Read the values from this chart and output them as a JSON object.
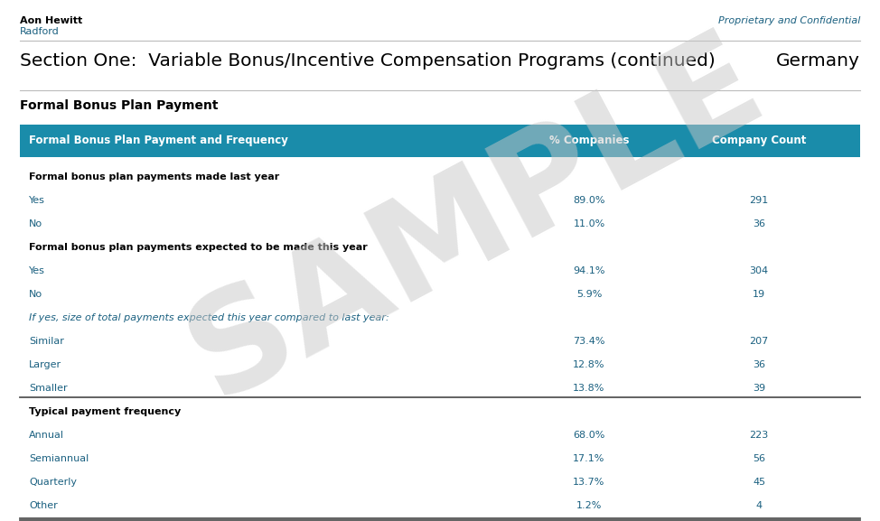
{
  "header_company": "Aon Hewitt",
  "header_sub": "Radford",
  "header_right": "Proprietary and Confidential",
  "section_title": "Section One:  Variable Bonus/Incentive Compensation Programs (continued)",
  "section_country": "Germany",
  "table_title": "Formal Bonus Plan Payment",
  "col1_header": "Formal Bonus Plan Payment and Frequency",
  "col2_header": "% Companies",
  "col3_header": "Company Count",
  "header_bg": "#1a8caa",
  "header_fg": "#ffffff",
  "rows": [
    {
      "label": "Formal bonus plan payments made last year",
      "pct": "",
      "count": "",
      "bold": true,
      "italic": false,
      "separator_before": false,
      "separator_after": false,
      "color": "#000000"
    },
    {
      "label": "Yes",
      "pct": "89.0%",
      "count": "291",
      "bold": false,
      "italic": false,
      "separator_before": false,
      "separator_after": false,
      "color": "#1a6080"
    },
    {
      "label": "No",
      "pct": "11.0%",
      "count": "36",
      "bold": false,
      "italic": false,
      "separator_before": false,
      "separator_after": false,
      "color": "#1a6080"
    },
    {
      "label": "Formal bonus plan payments expected to be made this year",
      "pct": "",
      "count": "",
      "bold": true,
      "italic": false,
      "separator_before": false,
      "separator_after": false,
      "color": "#000000"
    },
    {
      "label": "Yes",
      "pct": "94.1%",
      "count": "304",
      "bold": false,
      "italic": false,
      "separator_before": false,
      "separator_after": false,
      "color": "#1a6080"
    },
    {
      "label": "No",
      "pct": "5.9%",
      "count": "19",
      "bold": false,
      "italic": false,
      "separator_before": false,
      "separator_after": false,
      "color": "#1a6080"
    },
    {
      "label": "If yes, size of total payments expected this year compared to last year:",
      "pct": "",
      "count": "",
      "bold": false,
      "italic": true,
      "separator_before": false,
      "separator_after": false,
      "color": "#1a6080"
    },
    {
      "label": "Similar",
      "pct": "73.4%",
      "count": "207",
      "bold": false,
      "italic": false,
      "separator_before": false,
      "separator_after": false,
      "color": "#1a6080"
    },
    {
      "label": "Larger",
      "pct": "12.8%",
      "count": "36",
      "bold": false,
      "italic": false,
      "separator_before": false,
      "separator_after": false,
      "color": "#1a6080"
    },
    {
      "label": "Smaller",
      "pct": "13.8%",
      "count": "39",
      "bold": false,
      "italic": false,
      "separator_before": false,
      "separator_after": false,
      "color": "#1a6080"
    },
    {
      "label": "Typical payment frequency",
      "pct": "",
      "count": "",
      "bold": true,
      "italic": false,
      "separator_before": true,
      "separator_after": false,
      "color": "#000000"
    },
    {
      "label": "Annual",
      "pct": "68.0%",
      "count": "223",
      "bold": false,
      "italic": false,
      "separator_before": false,
      "separator_after": false,
      "color": "#1a6080"
    },
    {
      "label": "Semiannual",
      "pct": "17.1%",
      "count": "56",
      "bold": false,
      "italic": false,
      "separator_before": false,
      "separator_after": false,
      "color": "#1a6080"
    },
    {
      "label": "Quarterly",
      "pct": "13.7%",
      "count": "45",
      "bold": false,
      "italic": false,
      "separator_before": false,
      "separator_after": false,
      "color": "#1a6080"
    },
    {
      "label": "Other",
      "pct": "1.2%",
      "count": "4",
      "bold": false,
      "italic": false,
      "separator_before": false,
      "separator_after": true,
      "color": "#1a6080"
    }
  ],
  "sample_text": "SAMPLE",
  "sample_color": "#c8c8c8",
  "sample_alpha": 0.5,
  "bg_color": "#ffffff",
  "fig_width": 9.74,
  "fig_height": 5.77,
  "dpi": 100
}
